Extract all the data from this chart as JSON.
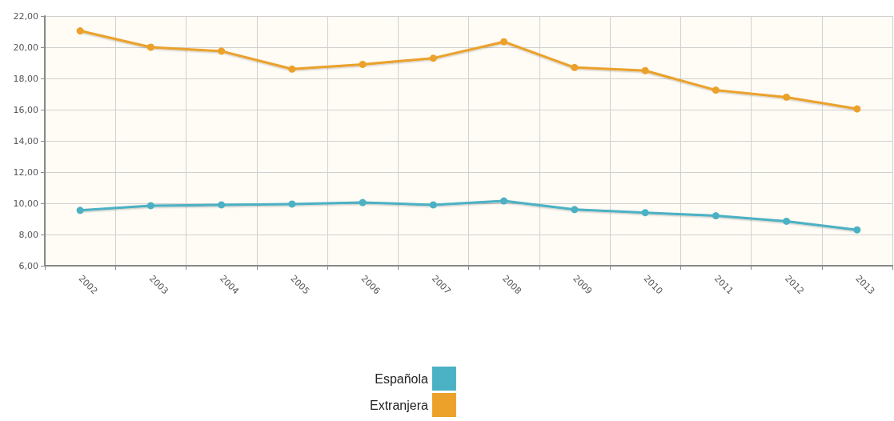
{
  "chart_data": {
    "type": "line",
    "categories": [
      "2002",
      "2003",
      "2004",
      "2005",
      "2006",
      "2007",
      "2008",
      "2009",
      "2010",
      "2011",
      "2012",
      "2013"
    ],
    "series": [
      {
        "name": "Española",
        "color": "#4bb1c4",
        "values": [
          9.55,
          9.85,
          9.9,
          9.95,
          10.05,
          9.9,
          10.15,
          9.6,
          9.4,
          9.2,
          8.85,
          8.3
        ]
      },
      {
        "name": "Extranjera",
        "color": "#eba12a",
        "values": [
          21.05,
          20.0,
          19.75,
          18.6,
          18.9,
          19.3,
          20.35,
          18.7,
          18.5,
          17.25,
          16.8,
          16.05
        ]
      }
    ],
    "ylim": [
      6,
      22
    ],
    "yticks": [
      {
        "value": 6,
        "label": "6,00"
      },
      {
        "value": 8,
        "label": "8,00"
      },
      {
        "value": 10,
        "label": "10,00"
      },
      {
        "value": 12,
        "label": "12,00"
      },
      {
        "value": 14,
        "label": "14,00"
      },
      {
        "value": 16,
        "label": "16,00"
      },
      {
        "value": 18,
        "label": "18,00"
      },
      {
        "value": 20,
        "label": "20,00"
      },
      {
        "value": 22,
        "label": "22,00"
      }
    ],
    "grid": true,
    "legend": "bottom",
    "marker": "circle",
    "line_style": "solid"
  }
}
